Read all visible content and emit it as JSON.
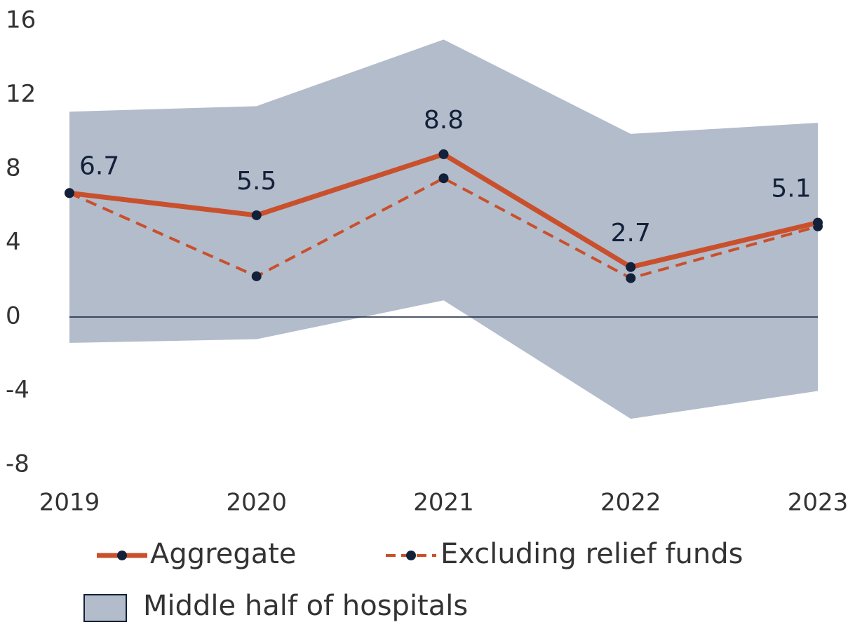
{
  "chart_data": {
    "type": "line",
    "categories": [
      "2019",
      "2020",
      "2021",
      "2022",
      "2023"
    ],
    "series": [
      {
        "name": "Aggregate",
        "color": "#c9502c",
        "dash": false,
        "values": [
          6.7,
          5.5,
          8.8,
          2.7,
          5.1
        ]
      },
      {
        "name": "Excluding relief funds",
        "color": "#c9502c",
        "dash": true,
        "values": [
          6.7,
          2.2,
          7.5,
          2.1,
          4.9
        ]
      }
    ],
    "band": {
      "name": "Middle half of hospitals",
      "color": "#b3bccb",
      "upper": [
        11.1,
        11.4,
        15.0,
        9.9,
        10.5
      ],
      "lower": [
        -1.4,
        -1.2,
        0.9,
        -5.5,
        -4.0
      ]
    },
    "marker_color": "#13203a",
    "ylim": [
      -8,
      16
    ],
    "yticks": [
      -8,
      -4,
      0,
      4,
      8,
      12,
      16
    ]
  }
}
